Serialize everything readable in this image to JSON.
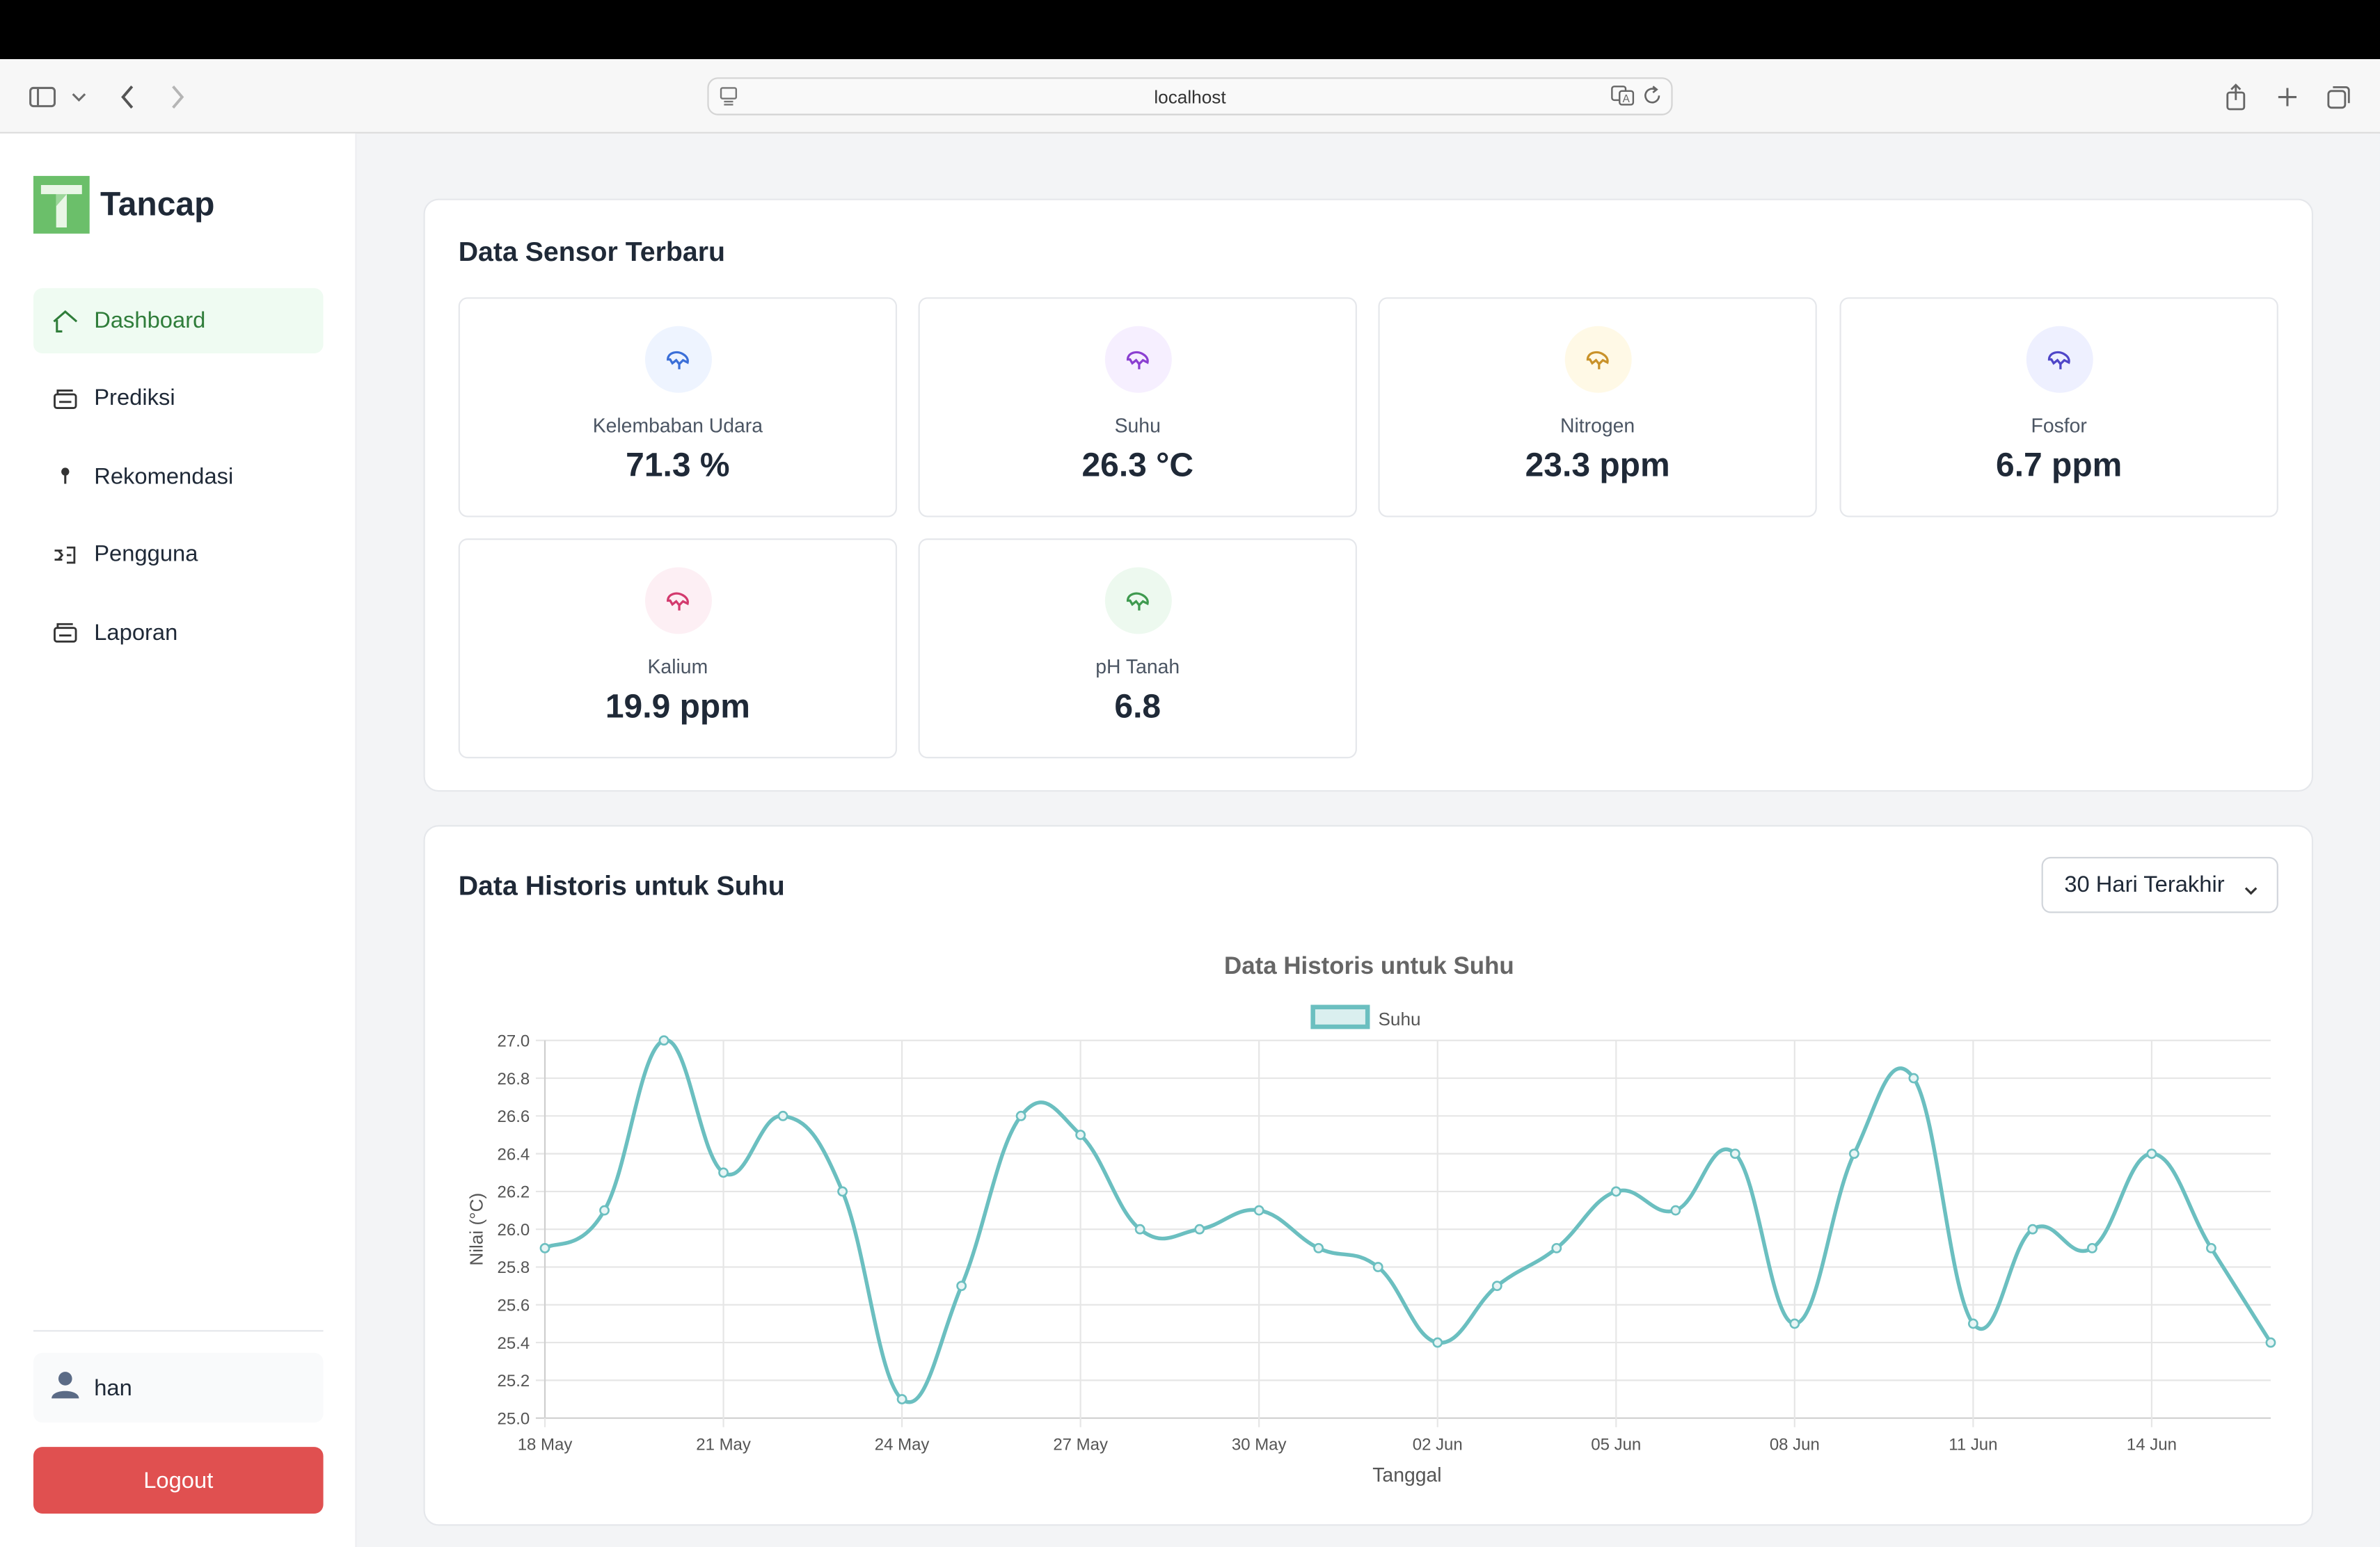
{
  "browser": {
    "url": "localhost"
  },
  "sidebar": {
    "brand": "Tancap",
    "items": [
      {
        "label": "Dashboard",
        "icon": "home-icon",
        "active": true
      },
      {
        "label": "Prediksi",
        "icon": "chart-icon"
      },
      {
        "label": "Rekomendasi",
        "icon": "pin-icon"
      },
      {
        "label": "Pengguna",
        "icon": "users-icon"
      },
      {
        "label": "Laporan",
        "icon": "report-icon"
      }
    ],
    "user": "han",
    "logout_label": "Logout"
  },
  "sensors": {
    "title": "Data Sensor Terbaru",
    "items": [
      {
        "label": "Kelembaban Udara",
        "value": "71.3 %",
        "color": "#3b6fd8",
        "bg": "#eef4ff"
      },
      {
        "label": "Suhu",
        "value": "26.3 °C",
        "color": "#8b3fd1",
        "bg": "#f6efff"
      },
      {
        "label": "Nitrogen",
        "value": "23.3 ppm",
        "color": "#c9922a",
        "bg": "#fff9e6"
      },
      {
        "label": "Fosfor",
        "value": "6.7 ppm",
        "color": "#4f46c8",
        "bg": "#eef0ff"
      },
      {
        "label": "Kalium",
        "value": "19.9 ppm",
        "color": "#d33a6e",
        "bg": "#fdeff4"
      },
      {
        "label": "pH Tanah",
        "value": "6.8",
        "color": "#3f9a4f",
        "bg": "#edf9ef"
      }
    ]
  },
  "history": {
    "title": "Data Historis untuk Suhu",
    "range": "30 Hari Terakhir"
  },
  "chart_data": {
    "type": "line",
    "title": "Data Historis untuk Suhu",
    "xlabel": "Tanggal",
    "ylabel": "Nilai (°C)",
    "ylim": [
      25.0,
      27.0
    ],
    "yticks": [
      "27.0",
      "26.8",
      "26.6",
      "26.4",
      "26.2",
      "26.0",
      "25.8",
      "25.6",
      "25.4",
      "25.2",
      "25.0"
    ],
    "xtick_labels": [
      "18 May",
      "21 May",
      "24 May",
      "27 May",
      "30 May",
      "02 Jun",
      "05 Jun",
      "08 Jun",
      "11 Jun",
      "14 Jun"
    ],
    "legend": "top",
    "grid": true,
    "color": "#6bbfc0",
    "series": [
      {
        "name": "Suhu",
        "x": [
          "18 May",
          "19 May",
          "20 May",
          "21 May",
          "22 May",
          "23 May",
          "24 May",
          "25 May",
          "26 May",
          "27 May",
          "28 May",
          "29 May",
          "30 May",
          "31 May",
          "01 Jun",
          "02 Jun",
          "03 Jun",
          "04 Jun",
          "05 Jun",
          "06 Jun",
          "07 Jun",
          "08 Jun",
          "09 Jun",
          "10 Jun",
          "11 Jun",
          "12 Jun",
          "13 Jun",
          "14 Jun",
          "15 Jun",
          "16 Jun"
        ],
        "values": [
          25.9,
          26.1,
          27.0,
          26.3,
          26.6,
          26.2,
          25.1,
          25.7,
          26.6,
          26.5,
          26.0,
          26.0,
          26.1,
          25.9,
          25.8,
          25.4,
          25.7,
          25.9,
          26.2,
          26.1,
          26.4,
          25.5,
          26.4,
          26.8,
          25.5,
          26.0,
          25.9,
          26.4,
          25.9,
          25.4
        ]
      }
    ]
  }
}
